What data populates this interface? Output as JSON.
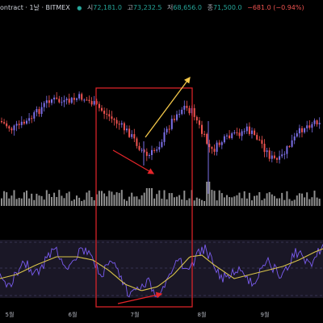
{
  "header": {
    "symbol": "ontract · 1날 · BITMEX",
    "open_label": "시",
    "open_value": "72,181.0",
    "high_label": "고",
    "high_value": "73,232.5",
    "low_label": "저",
    "low_value": "68,656.0",
    "close_label": "종",
    "close_value": "71,500.0",
    "change": "−681.0 (−0.94%)"
  },
  "x_axis": {
    "labels": [
      "5월",
      "6월",
      "7월",
      "8월",
      "9월"
    ]
  },
  "colors": {
    "background": "#000000",
    "bull_candle": "#7b6fe6",
    "bear_candle": "#ef5350",
    "volume_bar": "#8f8f8f",
    "oscillator_band": "#1a1726",
    "fast_line": "#7a5cf0",
    "slow_line": "#d8c34a",
    "annotation_box": "#e5252a",
    "arrow_red": "#e5252a",
    "arrow_yellow": "#f4c84a"
  },
  "annotations": [
    {
      "type": "rectangle",
      "color": "red",
      "meaning": "highlight region"
    },
    {
      "type": "arrow",
      "color": "red",
      "direction": "down-right",
      "meaning": "price decline"
    },
    {
      "type": "arrow",
      "color": "yellow",
      "direction": "up-right",
      "meaning": "expected rise"
    },
    {
      "type": "arrow",
      "color": "red",
      "direction": "right",
      "meaning": "oscillator rising lows"
    }
  ]
}
